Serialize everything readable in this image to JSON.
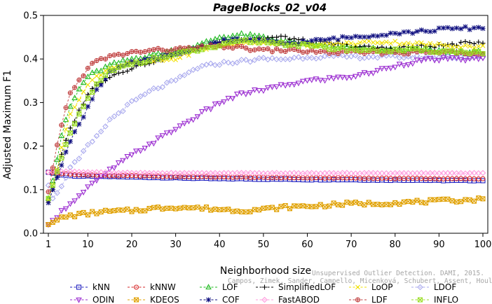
{
  "chart_data": {
    "type": "line",
    "title": "PageBlocks_02_v04",
    "xlabel": "Neighborhood size",
    "ylabel": "Adjusted Maximum F1",
    "xlim": [
      1,
      100
    ],
    "ylim": [
      0,
      0.5
    ],
    "xticks": [
      "1",
      "10",
      "20",
      "30",
      "40",
      "50",
      "60",
      "70",
      "80",
      "90",
      "100"
    ],
    "yticks": [
      "0.0",
      "0.1",
      "0.2",
      "0.3",
      "0.4",
      "0.5"
    ],
    "grid": false,
    "legend_position": "bottom",
    "watermark": [
      "Unsupervised Outlier Detection. DAMI, 2015.",
      "Campos, Zimek, Sander, Campello, Micenková, Schubert, Assent, Houle"
    ],
    "x_knots": [
      1,
      2,
      3,
      4,
      5,
      6,
      8,
      10,
      12,
      15,
      20,
      25,
      30,
      35,
      40,
      45,
      50,
      55,
      60,
      65,
      70,
      75,
      80,
      85,
      90,
      95,
      100
    ],
    "series": [
      {
        "name": "kNN",
        "color": "#1f1fbf",
        "marker": "square",
        "values": [
          0.14,
          0.138,
          0.136,
          0.134,
          0.133,
          0.132,
          0.131,
          0.131,
          0.13,
          0.13,
          0.129,
          0.128,
          0.127,
          0.126,
          0.125,
          0.125,
          0.124,
          0.124,
          0.123,
          0.123,
          0.123,
          0.122,
          0.122,
          0.122,
          0.121,
          0.121,
          0.121
        ]
      },
      {
        "name": "kNNW",
        "color": "#d62728",
        "marker": "circle",
        "values": [
          0.14,
          0.139,
          0.138,
          0.137,
          0.136,
          0.135,
          0.134,
          0.134,
          0.133,
          0.132,
          0.132,
          0.131,
          0.13,
          0.13,
          0.129,
          0.129,
          0.128,
          0.128,
          0.127,
          0.127,
          0.127,
          0.126,
          0.126,
          0.126,
          0.125,
          0.125,
          0.125
        ]
      },
      {
        "name": "LOF",
        "color": "#22bb22",
        "marker": "triangle",
        "values": [
          0.08,
          0.12,
          0.17,
          0.22,
          0.26,
          0.29,
          0.33,
          0.36,
          0.37,
          0.385,
          0.4,
          0.41,
          0.42,
          0.43,
          0.45,
          0.455,
          0.45,
          0.44,
          0.435,
          0.43,
          0.425,
          0.422,
          0.42,
          0.42,
          0.418,
          0.416,
          0.415
        ]
      },
      {
        "name": "SimplifiedLOF",
        "color": "#000000",
        "marker": "plus",
        "values": [
          0.07,
          0.1,
          0.14,
          0.18,
          0.21,
          0.24,
          0.28,
          0.32,
          0.34,
          0.36,
          0.38,
          0.395,
          0.41,
          0.425,
          0.44,
          0.445,
          0.448,
          0.45,
          0.44,
          0.435,
          0.43,
          0.425,
          0.425,
          0.428,
          0.43,
          0.435,
          0.44
        ]
      },
      {
        "name": "LoOP",
        "color": "#f0e000",
        "marker": "x",
        "values": [
          0.075,
          0.11,
          0.15,
          0.2,
          0.24,
          0.27,
          0.31,
          0.34,
          0.36,
          0.38,
          0.39,
          0.395,
          0.4,
          0.42,
          0.43,
          0.435,
          0.44,
          0.435,
          0.43,
          0.435,
          0.435,
          0.44,
          0.438,
          0.435,
          0.432,
          0.43,
          0.428
        ]
      },
      {
        "name": "LDOF",
        "color": "#aaaaee",
        "marker": "diamond",
        "values": [
          0.11,
          0.08,
          0.09,
          0.11,
          0.13,
          0.15,
          0.17,
          0.2,
          0.22,
          0.26,
          0.3,
          0.33,
          0.35,
          0.38,
          0.39,
          0.395,
          0.4,
          0.4,
          0.405,
          0.405,
          0.405,
          0.405,
          0.405,
          0.404,
          0.404,
          0.404,
          0.403
        ]
      },
      {
        "name": "ODIN",
        "color": "#9a2bd0",
        "marker": "triangle-down",
        "values": [
          0.02,
          0.03,
          0.04,
          0.05,
          0.06,
          0.07,
          0.085,
          0.105,
          0.12,
          0.145,
          0.18,
          0.21,
          0.24,
          0.27,
          0.3,
          0.32,
          0.33,
          0.34,
          0.35,
          0.355,
          0.36,
          0.37,
          0.385,
          0.395,
          0.4,
          0.4,
          0.4
        ]
      },
      {
        "name": "KDEOS",
        "color": "#e0a000",
        "marker": "square-x",
        "values": [
          0.02,
          0.025,
          0.03,
          0.035,
          0.038,
          0.04,
          0.043,
          0.045,
          0.048,
          0.05,
          0.052,
          0.057,
          0.06,
          0.058,
          0.055,
          0.052,
          0.055,
          0.06,
          0.062,
          0.065,
          0.068,
          0.068,
          0.07,
          0.072,
          0.074,
          0.076,
          0.078
        ]
      },
      {
        "name": "COF",
        "color": "#101080",
        "marker": "star",
        "values": [
          0.07,
          0.1,
          0.13,
          0.16,
          0.19,
          0.21,
          0.25,
          0.29,
          0.33,
          0.37,
          0.39,
          0.4,
          0.41,
          0.425,
          0.44,
          0.445,
          0.44,
          0.435,
          0.44,
          0.445,
          0.45,
          0.455,
          0.46,
          0.462,
          0.468,
          0.47,
          0.472
        ]
      },
      {
        "name": "FastABOD",
        "color": "#ff99dd",
        "marker": "diamond",
        "values": [
          0.14,
          0.141,
          0.142,
          0.142,
          0.142,
          0.142,
          0.141,
          0.14,
          0.14,
          0.139,
          0.139,
          0.138,
          0.138,
          0.138,
          0.138,
          0.138,
          0.138,
          0.138,
          0.138,
          0.138,
          0.138,
          0.138,
          0.138,
          0.138,
          0.138,
          0.138,
          0.138
        ]
      },
      {
        "name": "LDF",
        "color": "#c04040",
        "marker": "circle-plus",
        "values": [
          0.095,
          0.15,
          0.2,
          0.25,
          0.29,
          0.32,
          0.35,
          0.38,
          0.395,
          0.405,
          0.415,
          0.42,
          0.422,
          0.425,
          0.43,
          0.425,
          0.42,
          0.42,
          0.418,
          0.415,
          0.415,
          0.415,
          0.415,
          0.415,
          0.415,
          0.415,
          0.415
        ]
      },
      {
        "name": "INFLO",
        "color": "#99dd22",
        "marker": "square-x",
        "values": [
          0.08,
          0.11,
          0.14,
          0.17,
          0.2,
          0.23,
          0.27,
          0.31,
          0.34,
          0.37,
          0.39,
          0.4,
          0.41,
          0.42,
          0.43,
          0.44,
          0.44,
          0.435,
          0.43,
          0.425,
          0.422,
          0.42,
          0.42,
          0.42,
          0.418,
          0.416,
          0.415
        ]
      }
    ]
  }
}
